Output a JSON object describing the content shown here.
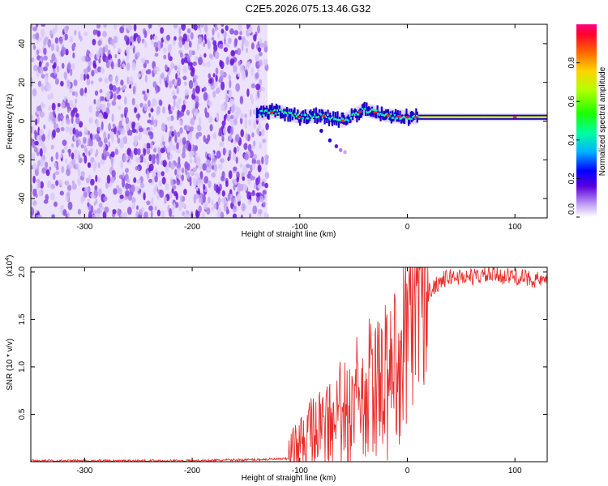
{
  "page_title": "C2E5.2026.075.13.46.G32",
  "chart_data": [
    {
      "type": "heatmap",
      "title": "C2E5.2026.075.13.46.G32",
      "xlabel": "Height of straight line (km)",
      "ylabel": "Frequency (Hz)",
      "xlim": [
        -350,
        130
      ],
      "ylim": [
        -50,
        50
      ],
      "x_ticks": [
        -300,
        -200,
        -100,
        0,
        100
      ],
      "y_ticks": [
        -40,
        -20,
        0,
        20,
        40
      ],
      "x_tick_labels": [
        "-300",
        "-200",
        "-100",
        "0",
        "100"
      ],
      "y_tick_labels": [
        "-40",
        "-20",
        "0",
        "20",
        "40"
      ],
      "noise_region_x": [
        -350,
        -130
      ],
      "signal_trace": {
        "x": [
          -140,
          -120,
          -100,
          -80,
          -60,
          -40,
          -20,
          0,
          20,
          60,
          100,
          130
        ],
        "freq": [
          4,
          5,
          2,
          3,
          0,
          6,
          3,
          2,
          2,
          2,
          2,
          2
        ]
      },
      "colorbar": {
        "label": "Normalized spectral amplitude",
        "range": [
          0,
          1
        ],
        "ticks": [
          0.0,
          0.2,
          0.4,
          0.6,
          0.8
        ],
        "tick_labels": [
          "0.0",
          "0.2",
          "0.4",
          "0.6",
          "0.8"
        ]
      }
    },
    {
      "type": "line",
      "xlabel": "Height of straight line (km)",
      "ylabel": "SNR (10 * v/v)",
      "y_multiplier": "(x10",
      "y_multiplier_exp": "4",
      "y_multiplier_close": ")",
      "xlim": [
        -350,
        130
      ],
      "ylim": [
        0,
        2.05
      ],
      "x_ticks": [
        -300,
        -200,
        -100,
        0,
        100
      ],
      "y_ticks": [
        0.5,
        1.0,
        1.5,
        2.0
      ],
      "x_tick_labels": [
        "-300",
        "-200",
        "-100",
        "0",
        "100"
      ],
      "y_tick_labels": [
        "0.5",
        "1.0",
        "1.5",
        "2.0"
      ],
      "color": "#e8302e",
      "series": [
        {
          "name": "SNR",
          "x": [
            -350,
            -300,
            -250,
            -200,
            -150,
            -110,
            -100,
            -90,
            -80,
            -70,
            -60,
            -50,
            -40,
            -30,
            -20,
            -10,
            0,
            10,
            20,
            30,
            40,
            60,
            80,
            100,
            120,
            130
          ],
          "values": [
            0.01,
            0.01,
            0.01,
            0.01,
            0.02,
            0.03,
            0.12,
            0.25,
            0.3,
            0.35,
            0.45,
            0.5,
            0.6,
            0.7,
            0.85,
            1.0,
            1.25,
            1.55,
            1.8,
            1.9,
            1.95,
            1.95,
            1.97,
            1.95,
            1.92,
            1.88
          ]
        }
      ]
    }
  ]
}
